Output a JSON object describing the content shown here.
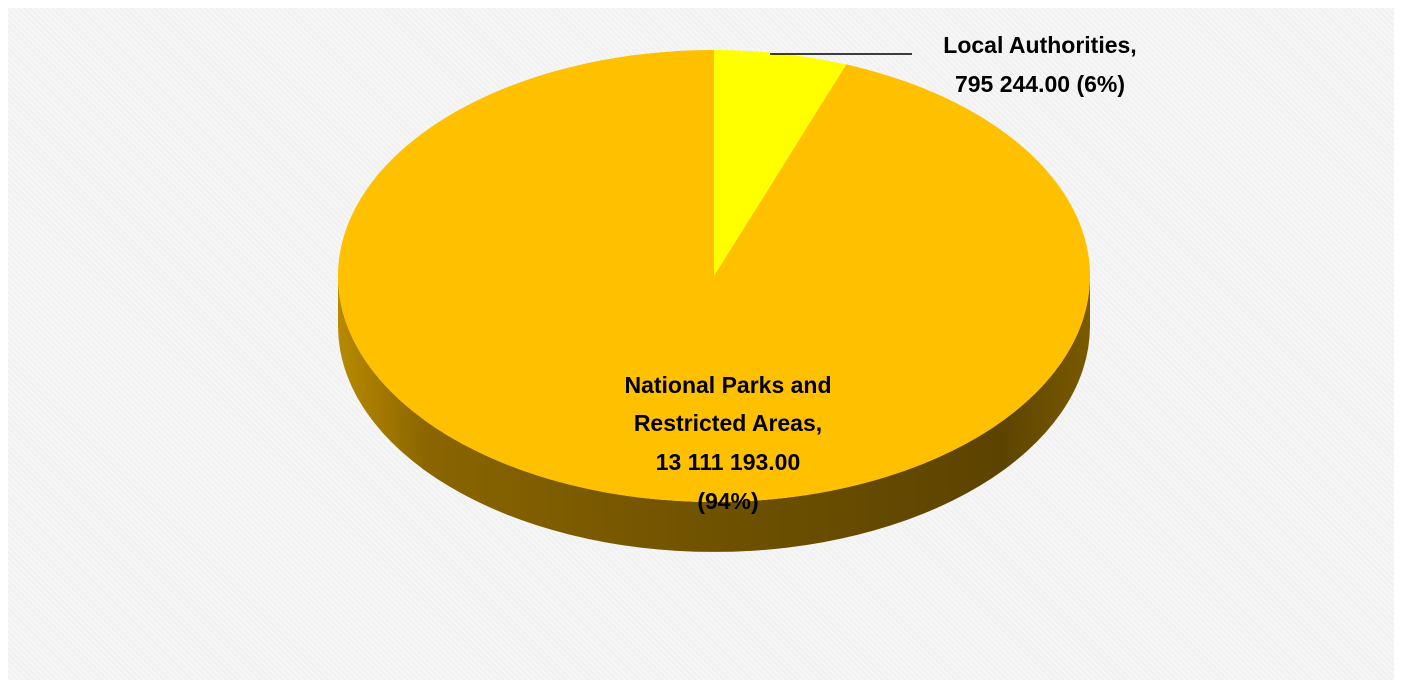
{
  "chart_data": {
    "type": "pie",
    "style": "3d",
    "title": "",
    "slices": [
      {
        "name": "Local Authorities",
        "value": 795244.0,
        "percent": 6,
        "value_label": "795 244.00",
        "percent_label": "(6%)",
        "color": "#ffff00"
      },
      {
        "name": "National Parks and Restricted Areas",
        "value": 13111193.0,
        "percent": 94,
        "value_label": "13 111 193.00",
        "percent_label": "(94%)",
        "color": "#ffc000"
      }
    ],
    "labels": {
      "local_line1": "Local Authorities,",
      "local_line2": "795 244.00  (6%)",
      "national_line1": "National Parks and",
      "national_line2": "Restricted Areas,",
      "national_line3": "13 111 193.00",
      "national_line4": "(94%)"
    },
    "legend": "none",
    "grid": false
  }
}
